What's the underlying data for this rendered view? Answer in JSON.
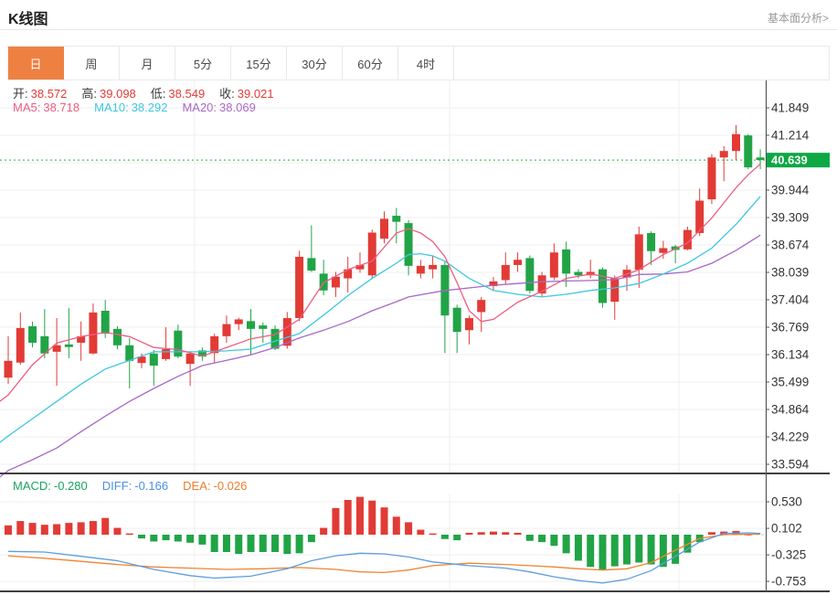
{
  "header": {
    "title": "K线图",
    "link": "基本面分析>"
  },
  "tabs": {
    "items": [
      "日",
      "周",
      "月",
      "5分",
      "15分",
      "30分",
      "60分",
      "4时"
    ],
    "active_index": 0
  },
  "overlay": {
    "ohlc": [
      {
        "label": "开:",
        "value": "38.572"
      },
      {
        "label": "高:",
        "value": "39.098"
      },
      {
        "label": "低:",
        "value": "38.549"
      },
      {
        "label": "收:",
        "value": "39.021"
      }
    ],
    "ma": [
      {
        "label": "MA5:",
        "value": "38.718",
        "color": "#ed5e82"
      },
      {
        "label": "MA10:",
        "value": "38.292",
        "color": "#3ec6e0"
      },
      {
        "label": "MA20:",
        "value": "38.069",
        "color": "#a868c8"
      }
    ]
  },
  "macd_header": [
    {
      "label": "MACD:",
      "value": "-0.280",
      "color": "#18a45f"
    },
    {
      "label": "DIFF:",
      "value": "-0.166",
      "color": "#4a8fe2"
    },
    {
      "label": "DEA:",
      "value": "-0.026",
      "color": "#ee7c2f"
    }
  ],
  "price_label": {
    "value": "40.639"
  },
  "colors": {
    "up": "#e23b36",
    "down": "#21a446",
    "ma5": "#ed5e82",
    "ma10": "#3ec6e0",
    "ma20": "#a868c8",
    "diff": "#5c9de0",
    "dea": "#ee8432",
    "price_line": "#27a93f",
    "price_tag_bg": "#0ca843",
    "active_tab": "#ee8142",
    "grid": "#efefef",
    "axis": "#555",
    "label_text": "#333",
    "separator": "#3f3f3f",
    "zero_dash": "#a9d3f2"
  },
  "chart_data": {
    "type": "candlestick",
    "title": "K线图 日K",
    "main": {
      "ylim": [
        33.4,
        42.55
      ],
      "yticks": [
        "41.849",
        "41.214",
        "40.579",
        "39.944",
        "39.309",
        "38.674",
        "38.039",
        "37.404",
        "36.769",
        "36.134",
        "35.499",
        "34.864",
        "34.229",
        "33.594"
      ],
      "current_price": 40.639,
      "candles": [
        [
          35.6,
          36.56,
          35.46,
          35.99
        ],
        [
          35.95,
          37.11,
          35.9,
          36.75
        ],
        [
          36.79,
          36.9,
          36.3,
          36.41
        ],
        [
          36.56,
          37.19,
          36.05,
          36.16
        ],
        [
          36.2,
          36.98,
          35.41,
          36.35
        ],
        [
          36.37,
          37.21,
          36.05,
          36.31
        ],
        [
          36.41,
          36.9,
          35.99,
          36.56
        ],
        [
          36.16,
          37.32,
          36.14,
          37.11
        ],
        [
          37.15,
          37.4,
          36.52,
          36.62
        ],
        [
          36.73,
          36.79,
          36.26,
          36.35
        ],
        [
          36.35,
          36.52,
          35.35,
          35.99
        ],
        [
          35.94,
          36.16,
          35.82,
          36.09
        ],
        [
          36.16,
          36.24,
          35.41,
          35.88
        ],
        [
          36.03,
          36.77,
          35.99,
          36.26
        ],
        [
          36.69,
          36.83,
          36.05,
          36.09
        ],
        [
          35.92,
          36.2,
          35.41,
          36.16
        ],
        [
          36.23,
          36.3,
          35.99,
          36.09
        ],
        [
          36.17,
          36.62,
          35.95,
          36.56
        ],
        [
          36.56,
          37.04,
          36.41,
          36.84
        ],
        [
          36.84,
          36.99,
          36.7,
          36.95
        ],
        [
          36.91,
          37.19,
          36.13,
          36.73
        ],
        [
          36.81,
          36.88,
          36.41,
          36.73
        ],
        [
          36.73,
          36.81,
          36.24,
          36.27
        ],
        [
          36.34,
          37.12,
          36.27,
          36.98
        ],
        [
          36.98,
          38.54,
          36.91,
          38.4
        ],
        [
          38.37,
          39.13,
          38.05,
          38.08
        ],
        [
          38.01,
          38.33,
          37.51,
          37.62
        ],
        [
          37.69,
          38.05,
          37.47,
          37.94
        ],
        [
          37.9,
          38.4,
          37.57,
          38.11
        ],
        [
          38.11,
          38.5,
          38.03,
          38.21
        ],
        [
          37.97,
          39.03,
          37.9,
          38.96
        ],
        [
          38.82,
          39.45,
          38.71,
          39.28
        ],
        [
          39.35,
          39.53,
          38.71,
          39.21
        ],
        [
          39.18,
          39.25,
          37.97,
          38.19
        ],
        [
          38.01,
          38.33,
          37.9,
          38.19
        ],
        [
          38.11,
          38.43,
          37.9,
          38.21
        ],
        [
          38.21,
          38.29,
          36.17,
          37.04
        ],
        [
          37.22,
          37.29,
          36.17,
          36.66
        ],
        [
          36.7,
          37.04,
          36.37,
          36.98
        ],
        [
          37.12,
          37.47,
          36.66,
          37.4
        ],
        [
          37.72,
          37.93,
          37.61,
          37.83
        ],
        [
          37.86,
          38.5,
          37.76,
          38.21
        ],
        [
          38.21,
          38.5,
          38.05,
          38.33
        ],
        [
          38.37,
          38.43,
          37.55,
          37.61
        ],
        [
          37.55,
          38.05,
          37.47,
          37.97
        ],
        [
          37.92,
          38.71,
          37.86,
          38.5
        ],
        [
          38.57,
          38.75,
          37.7,
          38.01
        ],
        [
          38.05,
          38.11,
          37.9,
          37.97
        ],
        [
          37.97,
          38.33,
          37.9,
          38.05
        ],
        [
          38.11,
          38.15,
          37.22,
          37.33
        ],
        [
          37.36,
          37.97,
          36.94,
          37.9
        ],
        [
          37.92,
          38.21,
          37.61,
          38.1
        ],
        [
          38.1,
          39.1,
          37.68,
          38.92
        ],
        [
          38.95,
          38.99,
          38.21,
          38.53
        ],
        [
          38.49,
          38.77,
          38.35,
          38.6
        ],
        [
          38.64,
          38.68,
          38.25,
          38.56
        ],
        [
          38.572,
          39.098,
          38.549,
          39.021
        ],
        [
          38.95,
          39.98,
          38.88,
          39.7
        ],
        [
          39.73,
          40.78,
          39.62,
          40.7
        ],
        [
          40.7,
          40.96,
          40.15,
          40.85
        ],
        [
          40.85,
          41.45,
          40.64,
          41.24
        ],
        [
          41.21,
          41.24,
          40.43,
          40.47
        ],
        [
          40.7,
          40.89,
          40.43,
          40.64
        ]
      ],
      "ma5": [
        [
          -0.7,
          35.05
        ],
        [
          0,
          35.2
        ],
        [
          2,
          35.9
        ],
        [
          4,
          36.4
        ],
        [
          6,
          36.55
        ],
        [
          8,
          36.65
        ],
        [
          10,
          36.55
        ],
        [
          12,
          36.3
        ],
        [
          14,
          36.25
        ],
        [
          16,
          36.1
        ],
        [
          18,
          36.3
        ],
        [
          20,
          36.5
        ],
        [
          22,
          36.6
        ],
        [
          24,
          36.95
        ],
        [
          26,
          37.8
        ],
        [
          28,
          38.1
        ],
        [
          30,
          38.3
        ],
        [
          32,
          38.95
        ],
        [
          33,
          39.05
        ],
        [
          34,
          38.95
        ],
        [
          35,
          38.75
        ],
        [
          36,
          38.4
        ],
        [
          37,
          37.8
        ],
        [
          38,
          37.15
        ],
        [
          39,
          36.9
        ],
        [
          40,
          36.95
        ],
        [
          42,
          37.35
        ],
        [
          44,
          37.6
        ],
        [
          46,
          37.9
        ],
        [
          48,
          38.0
        ],
        [
          50,
          37.9
        ],
        [
          52,
          38.1
        ],
        [
          54,
          38.45
        ],
        [
          56,
          38.72
        ],
        [
          58,
          39.3
        ],
        [
          60,
          40.0
        ],
        [
          61,
          40.3
        ],
        [
          62,
          40.55
        ]
      ],
      "ma10": [
        [
          -0.7,
          34.1
        ],
        [
          0,
          34.25
        ],
        [
          2,
          34.65
        ],
        [
          4,
          35.05
        ],
        [
          6,
          35.45
        ],
        [
          8,
          35.8
        ],
        [
          10,
          36.0
        ],
        [
          12,
          36.2
        ],
        [
          14,
          36.2
        ],
        [
          16,
          36.2
        ],
        [
          18,
          36.22
        ],
        [
          20,
          36.26
        ],
        [
          22,
          36.45
        ],
        [
          24,
          36.62
        ],
        [
          26,
          37.05
        ],
        [
          28,
          37.5
        ],
        [
          30,
          37.9
        ],
        [
          32,
          38.25
        ],
        [
          33,
          38.45
        ],
        [
          34,
          38.47
        ],
        [
          35,
          38.42
        ],
        [
          36,
          38.3
        ],
        [
          37,
          38.1
        ],
        [
          38,
          37.9
        ],
        [
          40,
          37.62
        ],
        [
          42,
          37.53
        ],
        [
          44,
          37.47
        ],
        [
          46,
          37.53
        ],
        [
          48,
          37.62
        ],
        [
          50,
          37.68
        ],
        [
          52,
          37.78
        ],
        [
          54,
          38.0
        ],
        [
          56,
          38.25
        ],
        [
          58,
          38.6
        ],
        [
          60,
          39.15
        ],
        [
          62,
          39.8
        ]
      ],
      "ma20": [
        [
          -0.7,
          33.3
        ],
        [
          0,
          33.45
        ],
        [
          2,
          33.7
        ],
        [
          4,
          33.97
        ],
        [
          6,
          34.35
        ],
        [
          8,
          34.71
        ],
        [
          10,
          35.05
        ],
        [
          12,
          35.35
        ],
        [
          14,
          35.63
        ],
        [
          16,
          35.88
        ],
        [
          18,
          36.0
        ],
        [
          20,
          36.13
        ],
        [
          22,
          36.3
        ],
        [
          24,
          36.52
        ],
        [
          26,
          36.7
        ],
        [
          28,
          36.9
        ],
        [
          30,
          37.15
        ],
        [
          32,
          37.36
        ],
        [
          33,
          37.47
        ],
        [
          36,
          37.62
        ],
        [
          38,
          37.68
        ],
        [
          40,
          37.74
        ],
        [
          42,
          37.78
        ],
        [
          44,
          37.82
        ],
        [
          46,
          37.84
        ],
        [
          48,
          37.85
        ],
        [
          50,
          37.87
        ],
        [
          52,
          37.99
        ],
        [
          54,
          38.0
        ],
        [
          56,
          38.05
        ],
        [
          58,
          38.25
        ],
        [
          60,
          38.55
        ],
        [
          62,
          38.9
        ]
      ]
    },
    "macd": {
      "ylim": [
        -0.93,
        0.59
      ],
      "yticks": [
        "0.530",
        "0.102",
        "-0.325",
        "-0.753"
      ],
      "hist": [
        0.15,
        0.22,
        0.19,
        0.16,
        0.17,
        0.19,
        0.2,
        0.22,
        0.27,
        0.11,
        0.02,
        -0.06,
        -0.11,
        -0.09,
        -0.11,
        -0.13,
        -0.16,
        -0.28,
        -0.28,
        -0.31,
        -0.28,
        -0.28,
        -0.28,
        -0.31,
        -0.3,
        -0.12,
        0.11,
        0.43,
        0.56,
        0.61,
        0.55,
        0.44,
        0.29,
        0.2,
        0.08,
        0.02,
        -0.07,
        -0.09,
        0.03,
        0.04,
        0.05,
        0.04,
        0.03,
        -0.1,
        -0.12,
        -0.18,
        -0.3,
        -0.42,
        -0.52,
        -0.56,
        -0.51,
        -0.48,
        -0.45,
        -0.48,
        -0.52,
        -0.47,
        -0.29,
        -0.12,
        0.04,
        0.05,
        0.06,
        0.01,
        0.0
      ],
      "diff": [
        [
          0,
          -0.27
        ],
        [
          3,
          -0.28
        ],
        [
          6,
          -0.35
        ],
        [
          9,
          -0.42
        ],
        [
          12,
          -0.56
        ],
        [
          15,
          -0.66
        ],
        [
          17,
          -0.7
        ],
        [
          20,
          -0.67
        ],
        [
          23,
          -0.55
        ],
        [
          25,
          -0.42
        ],
        [
          27,
          -0.34
        ],
        [
          29,
          -0.3
        ],
        [
          31,
          -0.31
        ],
        [
          33,
          -0.36
        ],
        [
          35,
          -0.44
        ],
        [
          38,
          -0.5
        ],
        [
          41,
          -0.54
        ],
        [
          43,
          -0.6
        ],
        [
          45,
          -0.68
        ],
        [
          47,
          -0.74
        ],
        [
          49,
          -0.78
        ],
        [
          51,
          -0.72
        ],
        [
          53,
          -0.58
        ],
        [
          55,
          -0.35
        ],
        [
          57,
          -0.12
        ],
        [
          59,
          0.02
        ],
        [
          61,
          0.03
        ],
        [
          62,
          0.02
        ]
      ],
      "dea": [
        [
          0,
          -0.34
        ],
        [
          3,
          -0.38
        ],
        [
          6,
          -0.43
        ],
        [
          9,
          -0.48
        ],
        [
          12,
          -0.52
        ],
        [
          15,
          -0.54
        ],
        [
          18,
          -0.56
        ],
        [
          21,
          -0.55
        ],
        [
          24,
          -0.53
        ],
        [
          27,
          -0.56
        ],
        [
          29,
          -0.6
        ],
        [
          31,
          -0.61
        ],
        [
          33,
          -0.57
        ],
        [
          35,
          -0.5
        ],
        [
          38,
          -0.46
        ],
        [
          41,
          -0.48
        ],
        [
          43,
          -0.5
        ],
        [
          45,
          -0.52
        ],
        [
          47,
          -0.55
        ],
        [
          49,
          -0.57
        ],
        [
          51,
          -0.55
        ],
        [
          53,
          -0.45
        ],
        [
          55,
          -0.25
        ],
        [
          57,
          -0.06
        ],
        [
          59,
          0.0
        ],
        [
          62,
          0.01
        ]
      ]
    }
  }
}
